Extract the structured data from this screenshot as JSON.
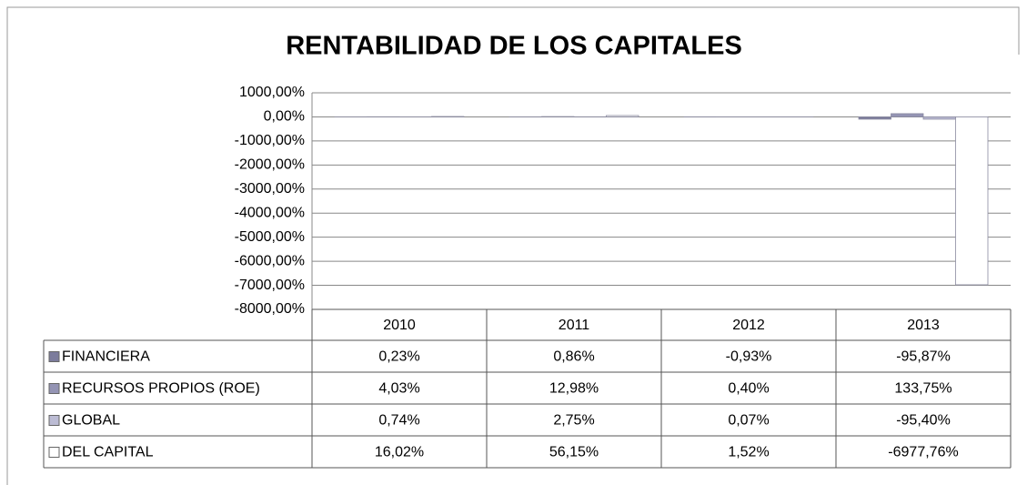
{
  "chart_data": {
    "type": "bar",
    "title": "RENTABILIDAD DE LOS CAPITALES",
    "categories": [
      "2010",
      "2011",
      "2012",
      "2013"
    ],
    "series": [
      {
        "name": "FINANCIERA",
        "color": "#7c7c9c",
        "values": [
          0.23,
          0.86,
          -0.93,
          -95.87
        ],
        "value_labels": [
          "0,23%",
          "0,86%",
          "-0,93%",
          "-95,87%"
        ]
      },
      {
        "name": "RECURSOS PROPIOS (ROE)",
        "color": "#9494b4",
        "values": [
          4.03,
          12.98,
          0.4,
          133.75
        ],
        "value_labels": [
          "4,03%",
          "12,98%",
          "0,40%",
          "133,75%"
        ]
      },
      {
        "name": "GLOBAL",
        "color": "#bcbcd4",
        "values": [
          0.74,
          2.75,
          0.07,
          -95.4
        ],
        "value_labels": [
          "0,74%",
          "2,75%",
          "0,07%",
          "-95,40%"
        ]
      },
      {
        "name": "DEL CAPITAL",
        "color": "#ffffff",
        "values": [
          16.02,
          56.15,
          1.52,
          -6977.76
        ],
        "value_labels": [
          "16,02%",
          "56,15%",
          "1,52%",
          "-6977,76%"
        ]
      }
    ],
    "ylim": [
      -8000,
      1000
    ],
    "yticks": [
      {
        "value": 1000,
        "label": "1000,00%"
      },
      {
        "value": 0,
        "label": "0,00%"
      },
      {
        "value": -1000,
        "label": "-1000,00%"
      },
      {
        "value": -2000,
        "label": "-2000,00%"
      },
      {
        "value": -3000,
        "label": "-3000,00%"
      },
      {
        "value": -4000,
        "label": "-4000,00%"
      },
      {
        "value": -5000,
        "label": "-5000,00%"
      },
      {
        "value": -6000,
        "label": "-6000,00%"
      },
      {
        "value": -7000,
        "label": "-7000,00%"
      },
      {
        "value": -8000,
        "label": "-8000,00%"
      }
    ],
    "grid": true
  }
}
